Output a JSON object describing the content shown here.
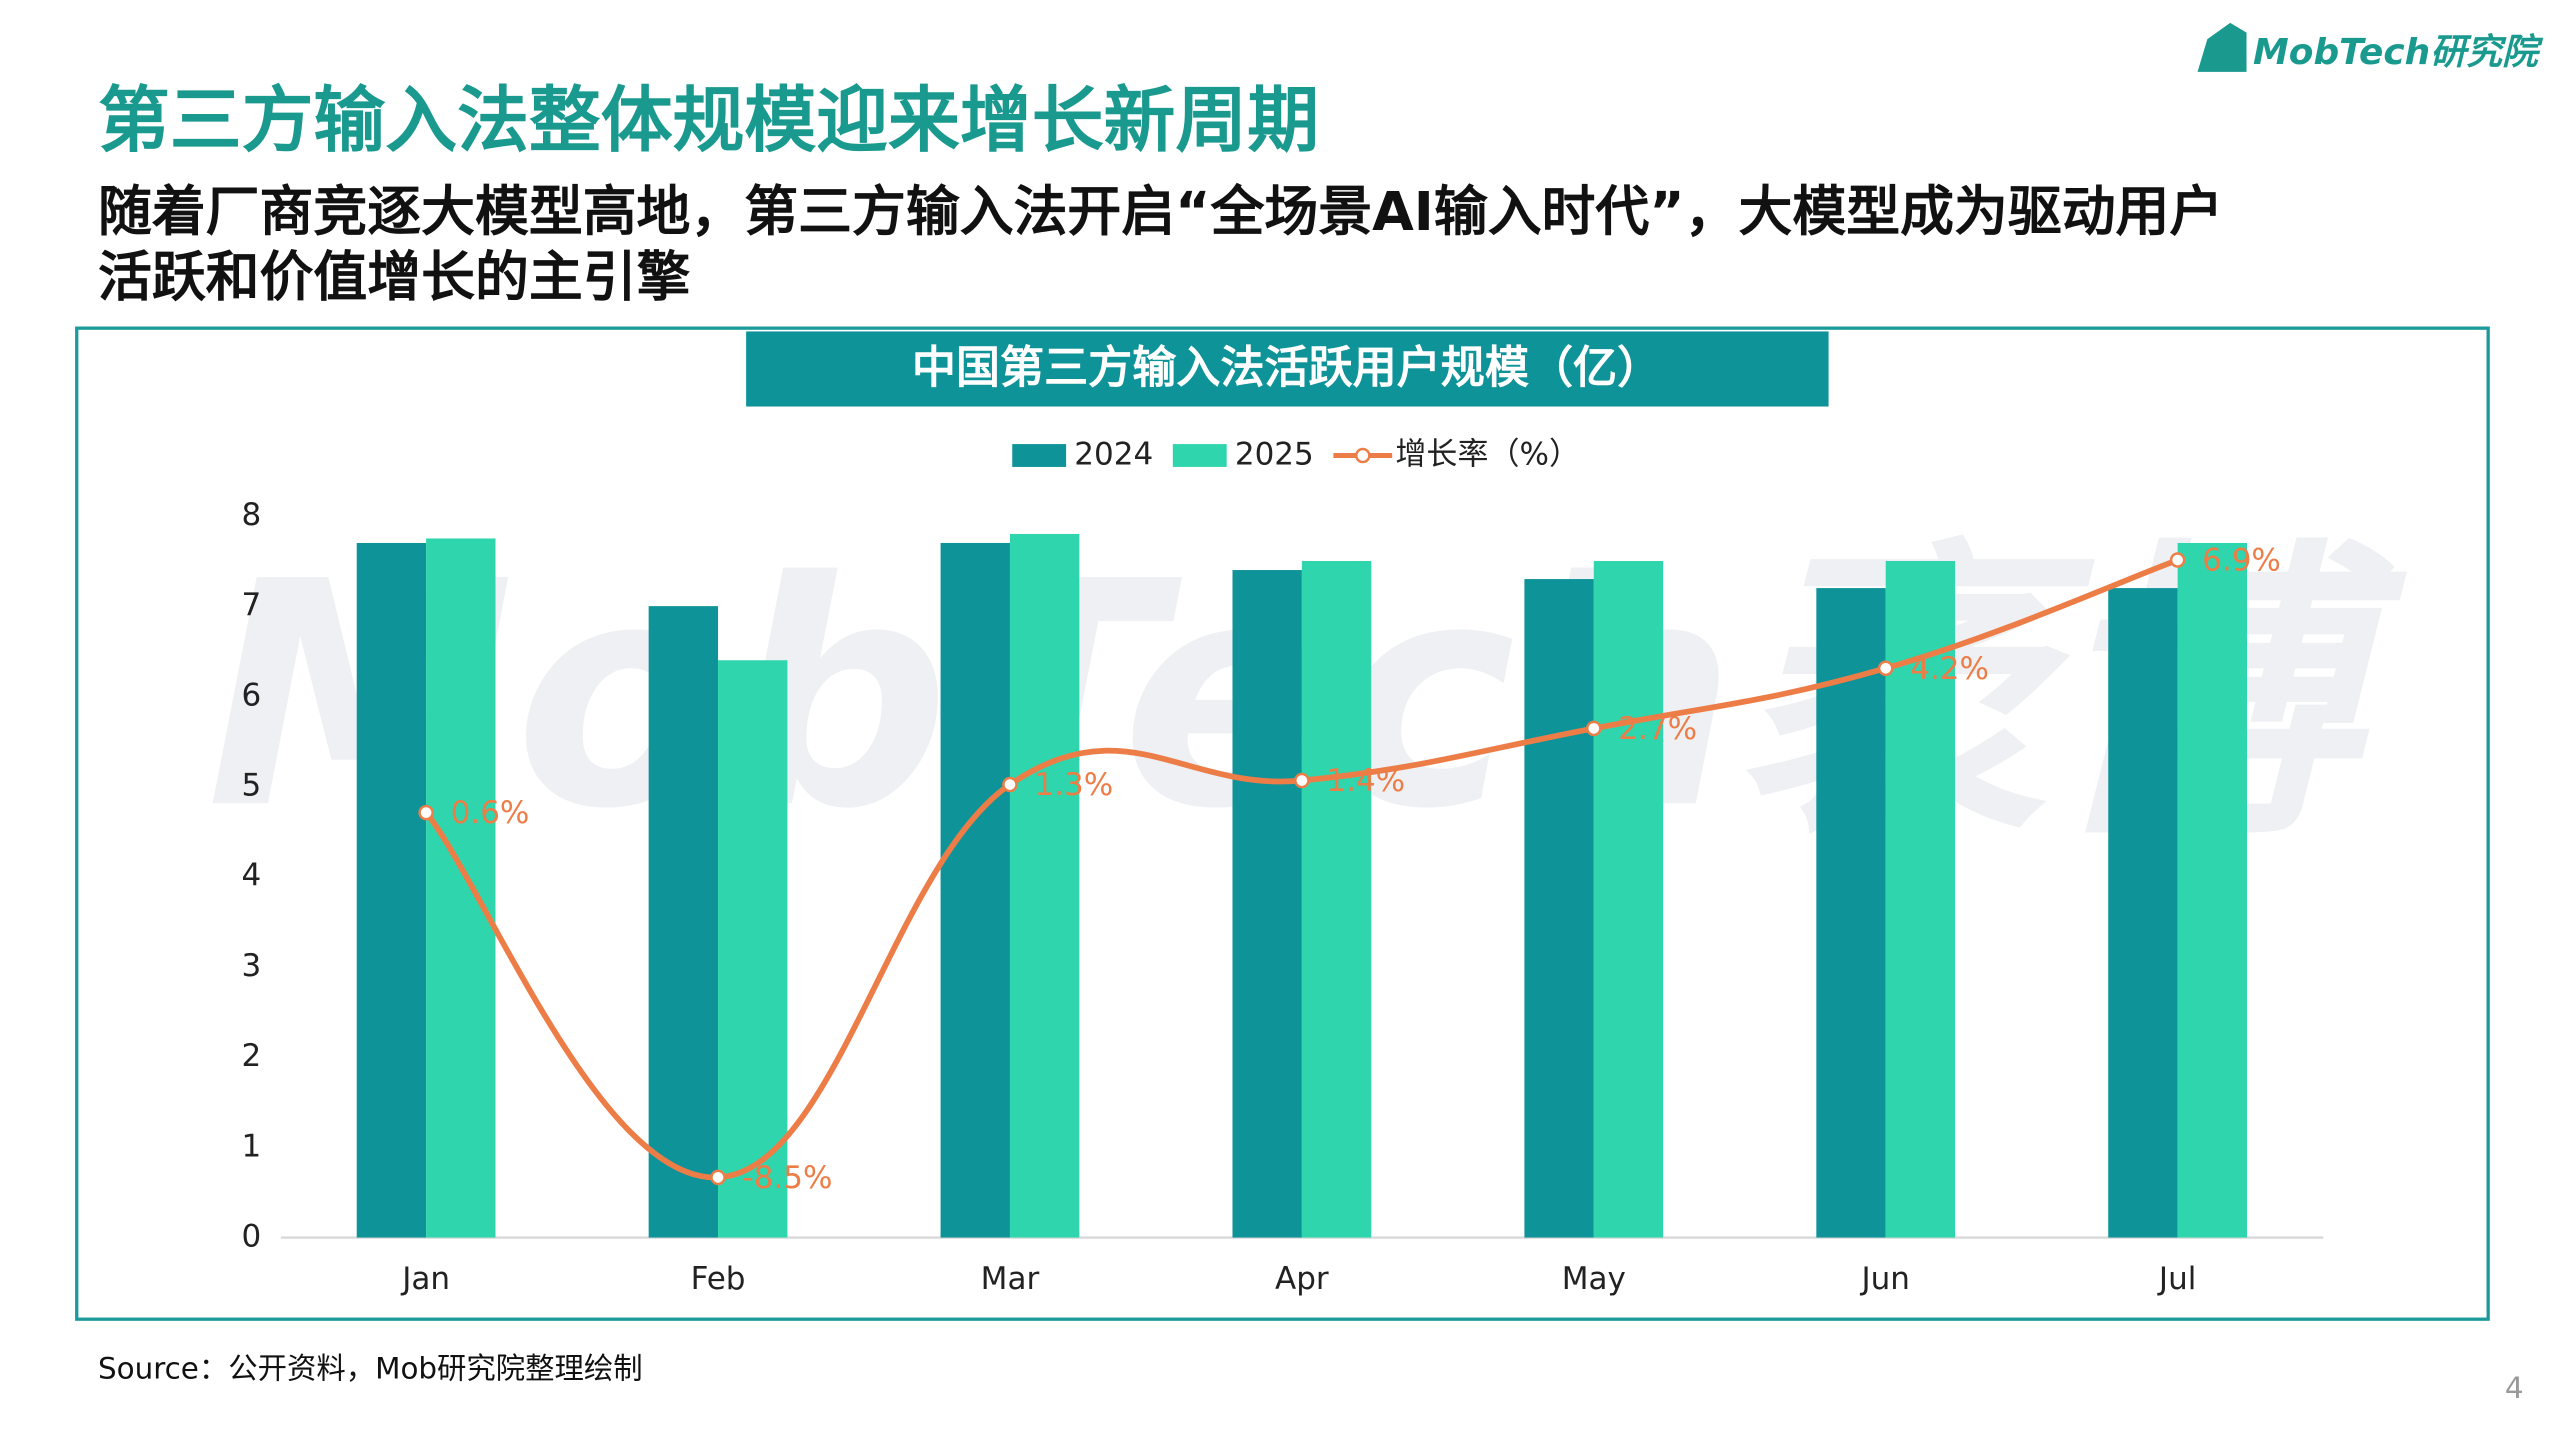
{
  "logo": "MobTech研究院",
  "header": {
    "title": "第三方输入法整体规模迎来增长新周期",
    "subtitle": [
      "随着厂商竞逐大模型高地，第三方输入法开启“全场景AI输入时代”，大模型成为驱动用户",
      "活跃和价值增长的主引擎"
    ]
  },
  "watermark": "MobTech袤博",
  "chart_data": {
    "type": "bar",
    "title": "中国第三方输入法活跃用户规模（亿）",
    "categories": [
      "Jan",
      "Feb",
      "Mar",
      "Apr",
      "May",
      "Jun",
      "Jul"
    ],
    "series": [
      {
        "name": "2024",
        "color": "#0e9399",
        "values": [
          7.7,
          7.0,
          7.7,
          7.4,
          7.3,
          7.2,
          7.2
        ]
      },
      {
        "name": "2025",
        "color": "#2fd6ad",
        "values": [
          7.75,
          6.4,
          7.8,
          7.5,
          7.5,
          7.5,
          7.7
        ]
      },
      {
        "name": "增长率（%）",
        "type": "line",
        "axis": "y2",
        "color": "#ed7d47",
        "values": [
          0.6,
          -8.5,
          1.3,
          1.4,
          2.7,
          4.2,
          6.9
        ],
        "value_labels": [
          "0.6%",
          "-8.5%",
          "1.3%",
          "1.4%",
          "2.7%",
          "4.2%",
          "6.9%"
        ]
      }
    ],
    "ylim": [
      0,
      8
    ],
    "yticks": [
      0,
      1,
      2,
      3,
      4,
      5,
      6,
      7,
      8
    ],
    "y2lim": [
      -10,
      8
    ],
    "legend": "top"
  },
  "source": "Source：公开资料，Mob研究院整理绘制",
  "page_number": "4"
}
